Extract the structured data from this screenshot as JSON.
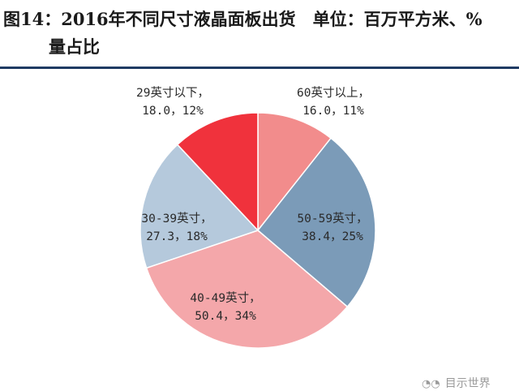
{
  "chart_data": {
    "type": "pie",
    "title_line1": "图14：2016年不同尺寸液晶面板出货　单位：百万平方米、%",
    "title_line2": "量占比",
    "slices": [
      {
        "name": "60英寸以上",
        "value": 16.0,
        "percent": "11%",
        "value_label": "16.0，11%",
        "color": "#f28c8c"
      },
      {
        "name": "50-59英寸",
        "value": 38.4,
        "percent": "25%",
        "value_label": "38.4，25%",
        "color": "#7b9bb8"
      },
      {
        "name": "40-49英寸",
        "value": 50.4,
        "percent": "34%",
        "value_label": "50.4，34%",
        "color": "#f4a7aa"
      },
      {
        "name": "30-39英寸",
        "value": 27.3,
        "percent": "18%",
        "value_label": "27.3，18%",
        "color": "#b5c9dc"
      },
      {
        "name": "29英寸以下",
        "value": 18.0,
        "percent": "12%",
        "value_label": "18.0，12%",
        "color": "#f0323c"
      }
    ]
  },
  "watermark": {
    "text": "目示世界",
    "icon": "wechat-icon"
  }
}
